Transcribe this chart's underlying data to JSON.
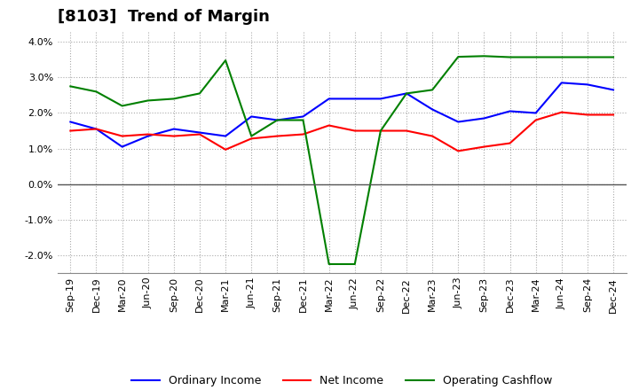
{
  "title": "[8103]  Trend of Margin",
  "x_labels": [
    "Sep-19",
    "Dec-19",
    "Mar-20",
    "Jun-20",
    "Sep-20",
    "Dec-20",
    "Mar-21",
    "Jun-21",
    "Sep-21",
    "Dec-21",
    "Mar-22",
    "Jun-22",
    "Sep-22",
    "Dec-22",
    "Mar-23",
    "Jun-23",
    "Sep-23",
    "Dec-23",
    "Mar-24",
    "Jun-24",
    "Sep-24",
    "Dec-24"
  ],
  "ordinary_income": [
    1.75,
    1.55,
    1.05,
    1.35,
    1.55,
    1.45,
    1.35,
    1.9,
    1.8,
    1.9,
    2.4,
    2.4,
    2.4,
    2.55,
    2.1,
    1.75,
    1.85,
    2.05,
    2.0,
    2.85,
    2.8,
    2.65
  ],
  "net_income": [
    1.5,
    1.55,
    1.35,
    1.4,
    1.35,
    1.4,
    0.97,
    1.28,
    1.35,
    1.4,
    1.65,
    1.5,
    1.5,
    1.5,
    1.35,
    0.93,
    1.05,
    1.15,
    1.8,
    2.02,
    1.95,
    1.95
  ],
  "operating_cashflow": [
    2.75,
    2.6,
    2.2,
    2.35,
    2.4,
    2.55,
    3.48,
    1.35,
    1.8,
    1.8,
    -2.25,
    -2.25,
    1.5,
    2.55,
    2.65,
    3.58,
    3.6,
    3.57,
    3.57,
    3.57,
    3.57,
    3.57
  ],
  "colors": {
    "ordinary_income": "#0000FF",
    "net_income": "#FF0000",
    "operating_cashflow": "#008000"
  },
  "ylim": [
    -2.5,
    4.3
  ],
  "yticks": [
    -2.0,
    -1.0,
    0.0,
    1.0,
    2.0,
    3.0,
    4.0
  ],
  "background_color": "#FFFFFF",
  "grid_color": "#AAAAAA",
  "title_fontsize": 13,
  "axis_fontsize": 8,
  "legend_fontsize": 9
}
